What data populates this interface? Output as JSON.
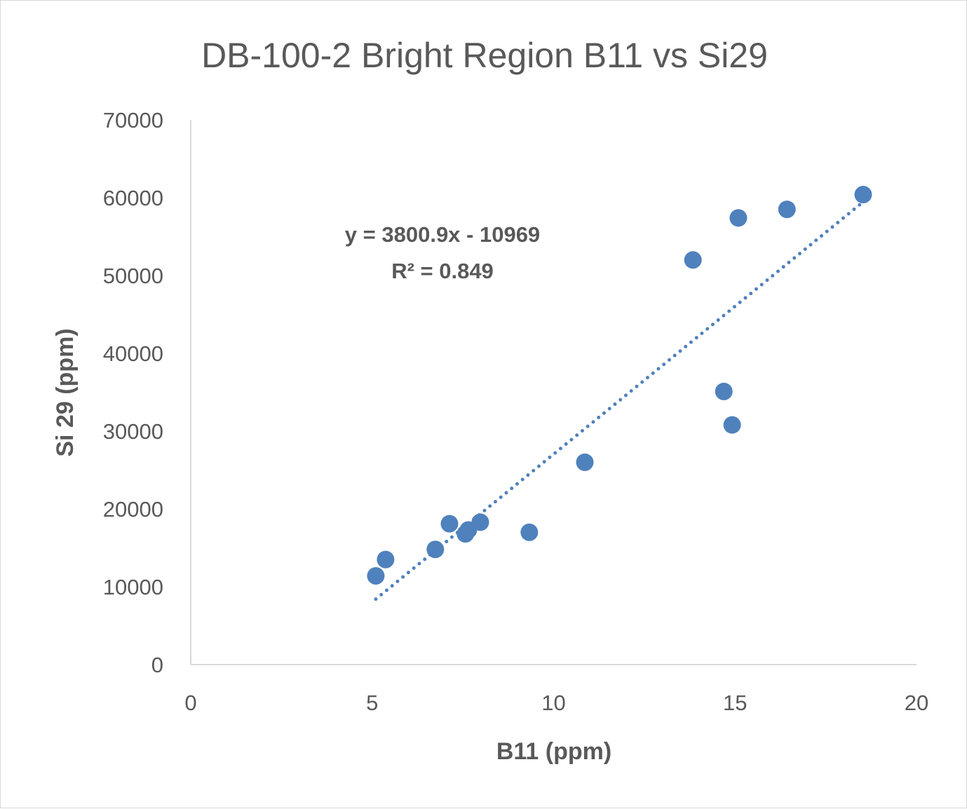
{
  "chart_data": {
    "type": "scatter",
    "title": "DB-100-2 Bright Region B11 vs Si29",
    "xlabel": "B11 (ppm)",
    "ylabel": "Si 29 (ppm)",
    "xlim": [
      0,
      20
    ],
    "ylim": [
      0,
      70000
    ],
    "xticks": [
      0,
      5,
      10,
      15,
      20
    ],
    "yticks": [
      0,
      10000,
      20000,
      30000,
      40000,
      50000,
      60000,
      70000
    ],
    "grid": false,
    "legend": "none",
    "marker_color": "#4F81BD",
    "points": [
      {
        "x": 5.1,
        "y": 11400
      },
      {
        "x": 5.37,
        "y": 13500
      },
      {
        "x": 6.74,
        "y": 14800
      },
      {
        "x": 7.13,
        "y": 18100
      },
      {
        "x": 7.57,
        "y": 16800
      },
      {
        "x": 7.65,
        "y": 17300
      },
      {
        "x": 7.98,
        "y": 18300
      },
      {
        "x": 9.33,
        "y": 17000
      },
      {
        "x": 10.86,
        "y": 26000
      },
      {
        "x": 13.84,
        "y": 52000
      },
      {
        "x": 14.69,
        "y": 35100
      },
      {
        "x": 14.92,
        "y": 30800
      },
      {
        "x": 15.09,
        "y": 57400
      },
      {
        "x": 16.43,
        "y": 58500
      },
      {
        "x": 18.53,
        "y": 60400
      }
    ],
    "trendline": {
      "type": "linear",
      "slope": 3800.9,
      "intercept": -10969,
      "x_range": [
        5.1,
        18.53
      ],
      "style": "dotted",
      "equation_label": "y = 3800.9x - 10969",
      "r2_label": "R² = 0.849"
    }
  }
}
